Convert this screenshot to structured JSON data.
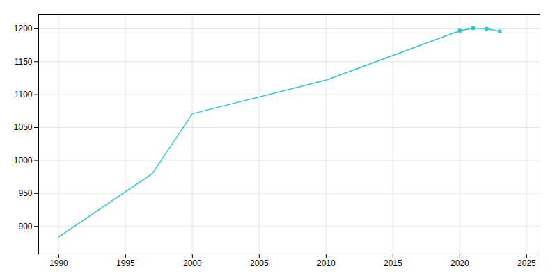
{
  "chart_data": {
    "type": "line",
    "x": [
      1990,
      1997,
      2000,
      2010,
      2020,
      2021,
      2022,
      2023
    ],
    "series": [
      {
        "type": "line",
        "color": "#2dc8c8",
        "values": [
          884,
          980,
          1071,
          1122,
          1197,
          1201,
          1200,
          1196
        ]
      },
      {
        "type": "scatter",
        "marker": "square",
        "color": "#2dc8c8",
        "values": [
          null,
          null,
          null,
          null,
          1197,
          1201,
          1200,
          1196
        ]
      }
    ],
    "xlim": [
      1988.5,
      2026
    ],
    "ylim": [
      858,
      1222
    ],
    "xticks": [
      1990,
      1995,
      2000,
      2005,
      2010,
      2015,
      2020,
      2025
    ],
    "yticks": [
      900,
      950,
      1000,
      1050,
      1100,
      1150,
      1200
    ],
    "grid": true
  }
}
